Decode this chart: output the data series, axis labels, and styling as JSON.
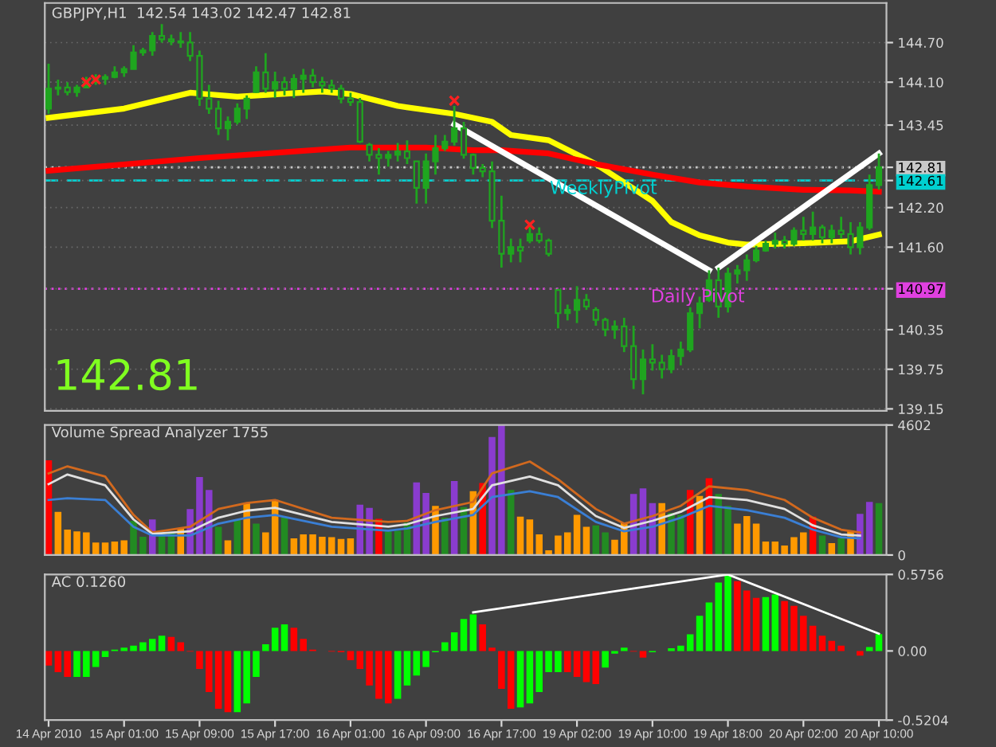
{
  "chart_data": [
    {
      "type": "candlestick",
      "title": "GBPJPY,H1  142.54 143.02 142.47 142.81",
      "color": "#1fa51f",
      "grid": "y",
      "categories": [
        null,
        null,
        null,
        null,
        null,
        null,
        null,
        null,
        null,
        null,
        null,
        null,
        null,
        null,
        null,
        null,
        null,
        null,
        null,
        null,
        null,
        null,
        null,
        null,
        null,
        null,
        null,
        null,
        null,
        null,
        null,
        null,
        null,
        null,
        null,
        null,
        null,
        null,
        null,
        null,
        null,
        null,
        null,
        null,
        null,
        null,
        null,
        null,
        null,
        null,
        null,
        null,
        null,
        null,
        null,
        null,
        null,
        null,
        null,
        null,
        null,
        null,
        null,
        null,
        null,
        null,
        null,
        null,
        null,
        null,
        null,
        null,
        null,
        null,
        null,
        null,
        null,
        null,
        null,
        null,
        null,
        null,
        null,
        null,
        null,
        null,
        null,
        null,
        null
      ],
      "ohlc": [
        [
          143.7,
          144.38,
          143.62,
          144.0
        ],
        [
          144.0,
          144.14,
          143.9,
          144.02
        ],
        [
          144.02,
          144.1,
          143.9,
          143.95
        ],
        [
          143.95,
          144.06,
          143.88,
          144.02
        ],
        [
          144.02,
          144.18,
          144.02,
          144.1
        ],
        [
          144.1,
          144.22,
          144.06,
          144.15
        ],
        [
          144.15,
          144.22,
          144.06,
          144.18
        ],
        [
          144.18,
          144.34,
          144.16,
          144.25
        ],
        [
          144.25,
          144.34,
          144.18,
          144.3
        ],
        [
          144.3,
          144.66,
          144.3,
          144.55
        ],
        [
          144.55,
          144.62,
          144.5,
          144.58
        ],
        [
          144.58,
          144.86,
          144.5,
          144.8
        ],
        [
          144.8,
          144.98,
          144.7,
          144.75
        ],
        [
          144.75,
          144.82,
          144.66,
          144.72
        ],
        [
          144.72,
          144.86,
          144.62,
          144.7
        ],
        [
          144.7,
          144.86,
          144.42,
          144.5
        ],
        [
          144.5,
          144.58,
          143.74,
          143.85
        ],
        [
          143.85,
          144.06,
          143.62,
          143.7
        ],
        [
          143.7,
          143.82,
          143.3,
          143.4
        ],
        [
          143.4,
          143.58,
          143.22,
          143.5
        ],
        [
          143.5,
          143.78,
          143.46,
          143.7
        ],
        [
          143.7,
          143.9,
          143.54,
          143.85
        ],
        [
          143.95,
          144.34,
          143.94,
          144.25
        ],
        [
          144.25,
          144.54,
          143.94,
          144.0
        ],
        [
          144.0,
          144.26,
          143.86,
          144.1
        ],
        [
          144.1,
          144.18,
          143.9,
          144.0
        ],
        [
          144.0,
          144.22,
          143.86,
          144.15
        ],
        [
          144.15,
          144.3,
          143.94,
          144.2
        ],
        [
          144.2,
          144.3,
          144.02,
          144.1
        ],
        [
          144.1,
          144.18,
          143.94,
          144.05
        ],
        [
          144.05,
          144.14,
          143.94,
          144.0
        ],
        [
          144.0,
          144.06,
          143.78,
          143.85
        ],
        [
          143.85,
          143.94,
          143.74,
          143.8
        ],
        [
          143.8,
          143.86,
          143.18,
          143.2
        ],
        [
          143.15,
          143.18,
          142.9,
          143.0
        ],
        [
          143.0,
          143.1,
          142.7,
          142.95
        ],
        [
          142.95,
          143.06,
          142.82,
          143.0
        ],
        [
          143.0,
          143.18,
          142.9,
          143.05
        ],
        [
          143.05,
          143.22,
          142.86,
          142.95
        ],
        [
          142.9,
          142.9,
          142.26,
          142.5
        ],
        [
          142.5,
          143.02,
          142.26,
          142.9
        ],
        [
          142.9,
          143.3,
          142.7,
          143.1
        ],
        [
          143.1,
          143.3,
          143.06,
          143.2
        ],
        [
          143.2,
          143.74,
          143.14,
          143.4
        ],
        [
          143.4,
          143.5,
          142.94,
          143.0
        ],
        [
          143.0,
          143.02,
          142.7,
          142.8
        ],
        [
          142.8,
          142.86,
          142.66,
          142.75
        ],
        [
          142.75,
          142.9,
          141.89,
          142.0
        ],
        [
          142.0,
          142.38,
          141.29,
          141.5
        ],
        [
          141.5,
          141.73,
          141.37,
          141.6
        ],
        [
          141.6,
          141.73,
          141.37,
          141.55
        ],
        [
          141.7,
          141.98,
          141.66,
          141.8
        ],
        [
          141.8,
          141.9,
          141.66,
          141.7
        ],
        [
          141.7,
          141.73,
          141.46,
          141.5
        ],
        [
          140.95,
          140.97,
          140.37,
          140.6
        ],
        [
          140.6,
          140.73,
          140.49,
          140.65
        ],
        [
          140.65,
          141.01,
          140.45,
          140.8
        ],
        [
          140.8,
          140.89,
          140.65,
          140.7
        ],
        [
          140.65,
          140.69,
          140.41,
          140.5
        ],
        [
          140.5,
          140.53,
          140.25,
          140.35
        ],
        [
          140.35,
          140.49,
          140.21,
          140.4
        ],
        [
          140.4,
          140.53,
          140.01,
          140.1
        ],
        [
          140.1,
          140.41,
          139.45,
          139.6
        ],
        [
          139.6,
          140.05,
          139.37,
          139.9
        ],
        [
          139.9,
          140.13,
          139.73,
          139.85
        ],
        [
          139.85,
          139.97,
          139.61,
          139.75
        ],
        [
          139.75,
          140.05,
          139.69,
          139.95
        ],
        [
          139.95,
          140.17,
          139.81,
          140.05
        ],
        [
          140.05,
          140.69,
          140.01,
          140.6
        ],
        [
          140.6,
          140.85,
          140.37,
          140.75
        ],
        [
          140.8,
          141.25,
          140.77,
          141.1
        ],
        [
          141.1,
          141.29,
          140.53,
          140.7
        ],
        [
          140.7,
          141.29,
          140.61,
          141.2
        ],
        [
          141.2,
          141.33,
          141.05,
          141.25
        ],
        [
          141.25,
          141.49,
          141.09,
          141.4
        ],
        [
          141.4,
          141.62,
          141.37,
          141.55
        ],
        [
          141.55,
          141.7,
          141.53,
          141.65
        ],
        [
          141.65,
          141.82,
          141.58,
          141.7
        ],
        [
          141.7,
          141.77,
          141.58,
          141.65
        ],
        [
          141.65,
          141.9,
          141.62,
          141.85
        ],
        [
          141.85,
          142.06,
          141.7,
          141.8
        ],
        [
          141.8,
          142.14,
          141.7,
          141.9
        ],
        [
          141.9,
          141.94,
          141.66,
          141.75
        ],
        [
          141.75,
          141.94,
          141.66,
          141.85
        ],
        [
          141.85,
          142.06,
          141.73,
          141.8
        ],
        [
          141.8,
          141.98,
          141.49,
          141.6
        ],
        [
          141.6,
          141.98,
          141.49,
          141.9
        ],
        [
          141.9,
          142.7,
          141.86,
          142.54
        ],
        [
          142.54,
          143.02,
          142.47,
          142.81
        ]
      ],
      "series": [
        {
          "type": "line",
          "color": "#ffff00",
          "values": [
            143.56,
            null,
            null,
            null,
            null,
            null,
            null,
            null,
            143.7,
            null,
            null,
            null,
            null,
            null,
            null,
            143.94,
            null,
            null,
            null,
            null,
            143.88,
            null,
            null,
            null,
            null,
            null,
            null,
            null,
            null,
            143.96,
            null,
            null,
            143.92,
            null,
            null,
            null,
            null,
            143.74,
            null,
            null,
            null,
            null,
            null,
            143.62,
            null,
            null,
            null,
            143.5,
            null,
            143.3,
            null,
            null,
            null,
            143.22,
            null,
            null,
            null,
            null,
            142.86,
            null,
            null,
            null,
            null,
            null,
            142.3,
            null,
            141.98,
            null,
            null,
            141.78,
            null,
            null,
            141.67,
            null,
            141.64,
            null,
            null,
            null,
            null,
            null,
            141.66,
            null,
            null,
            null,
            null,
            141.69,
            null,
            null,
            141.79
          ]
        },
        {
          "type": "line",
          "color": "#ff0000",
          "values": [
            142.76,
            null,
            null,
            null,
            null,
            null,
            null,
            null,
            null,
            null,
            null,
            null,
            null,
            null,
            null,
            null,
            142.95,
            null,
            null,
            null,
            null,
            null,
            null,
            null,
            143.03,
            null,
            null,
            null,
            null,
            null,
            null,
            null,
            143.11,
            null,
            null,
            null,
            null,
            null,
            null,
            null,
            143.11,
            null,
            null,
            null,
            null,
            143.07,
            null,
            null,
            143.07,
            null,
            null,
            null,
            null,
            143.02,
            null,
            null,
            null,
            null,
            142.86,
            null,
            null,
            null,
            null,
            null,
            142.7,
            null,
            null,
            null,
            null,
            142.58,
            null,
            null,
            null,
            null,
            142.52,
            null,
            null,
            null,
            null,
            null,
            142.47,
            null,
            null,
            null,
            null,
            142.46,
            null,
            null,
            142.44
          ]
        },
        {
          "type": "line",
          "color": "#ffffff",
          "values": [
            null,
            null,
            null,
            null,
            null,
            null,
            null,
            null,
            null,
            null,
            null,
            null,
            null,
            null,
            null,
            null,
            null,
            null,
            null,
            null,
            null,
            null,
            null,
            null,
            null,
            null,
            null,
            null,
            null,
            null,
            null,
            null,
            null,
            null,
            null,
            null,
            null,
            null,
            null,
            null,
            null,
            null,
            null,
            143.46,
            null,
            null,
            null,
            null,
            null,
            null,
            null,
            null,
            null,
            null,
            null,
            null,
            null,
            null,
            null,
            null,
            null,
            null,
            null,
            null,
            null,
            null,
            null,
            null,
            null,
            null,
            141.25,
            null,
            null,
            null,
            null,
            null,
            null,
            null,
            null,
            null,
            null,
            null,
            null,
            null,
            null,
            null,
            null,
            null,
            null
          ]
        },
        {
          "type": "line",
          "color": "#ffffff",
          "values": [
            null,
            null,
            null,
            null,
            null,
            null,
            null,
            null,
            null,
            null,
            null,
            null,
            null,
            null,
            null,
            null,
            null,
            null,
            null,
            null,
            null,
            null,
            null,
            null,
            null,
            null,
            null,
            null,
            null,
            null,
            null,
            null,
            null,
            null,
            null,
            null,
            null,
            null,
            null,
            null,
            null,
            null,
            null,
            null,
            null,
            null,
            null,
            null,
            null,
            null,
            null,
            null,
            null,
            null,
            null,
            null,
            null,
            null,
            null,
            null,
            null,
            null,
            null,
            null,
            null,
            null,
            null,
            null,
            null,
            null,
            null,
            141.29,
            null,
            null,
            null,
            null,
            null,
            null,
            null,
            null,
            null,
            null,
            null,
            null,
            null,
            null,
            null,
            null,
            143.02
          ]
        },
        {
          "type": "scatter",
          "marker": "cross",
          "color": "#ff2020",
          "values": [
            null,
            null,
            null,
            null,
            144.1,
            144.14,
            null,
            null,
            null,
            null,
            null,
            null,
            null,
            null,
            null,
            null,
            null,
            null,
            null,
            null,
            null,
            null,
            null,
            null,
            null,
            null,
            null,
            null,
            null,
            null,
            null,
            null,
            null,
            null,
            null,
            null,
            null,
            null,
            null,
            null,
            null,
            null,
            null,
            143.82,
            null,
            null,
            null,
            null,
            null,
            null,
            null,
            141.94,
            null,
            null,
            null,
            null,
            null,
            null,
            null,
            null,
            null,
            null,
            null,
            null,
            null,
            null,
            null,
            null,
            null,
            null,
            null,
            null,
            null,
            null,
            null,
            null,
            null,
            null,
            null,
            null,
            null,
            null,
            null,
            null,
            null,
            null,
            null,
            null,
            null
          ]
        }
      ],
      "ylim": [
        139.12,
        145.3
      ],
      "yticks": [
        {
          "value": 144.7,
          "label": "144.70"
        },
        {
          "value": 144.1,
          "label": "144.10"
        },
        143.45,
        142.81,
        142.61,
        {
          "value": 142.2,
          "label": "142.20"
        },
        {
          "value": 141.6,
          "label": "141.60"
        },
        140.97,
        140.35,
        139.75,
        139.15
      ],
      "ref_lines": [
        {
          "axis": "y",
          "value": 142.81,
          "color": "#c8c8c8",
          "line_style": "dotted"
        },
        {
          "axis": "y",
          "value": 142.61,
          "label": "WeeklyPivot",
          "color": "#00d0d0",
          "line_style": "dashed"
        },
        {
          "axis": "y",
          "value": 140.97,
          "label": "Daily Pivot",
          "color": "#e040e0",
          "line_style": "dotted"
        }
      ],
      "annotations": [
        "142.81"
      ]
    },
    {
      "type": "bar",
      "title": "Volume Spread Analyzer 1755",
      "categories": [
        null,
        null,
        null,
        null,
        null,
        null,
        null,
        null,
        null,
        null,
        null,
        null,
        null,
        null,
        null,
        null,
        null,
        null,
        null,
        null,
        null,
        null,
        null,
        null,
        null,
        null,
        null,
        null,
        null,
        null,
        null,
        null,
        null,
        null,
        null,
        null,
        null,
        null,
        null,
        null,
        null,
        null,
        null,
        null,
        null,
        null,
        null,
        null,
        null,
        null,
        null,
        null,
        null,
        null,
        null,
        null,
        null,
        null,
        null,
        null,
        null,
        null,
        null,
        null,
        null,
        null,
        null,
        null,
        null,
        null,
        null,
        null,
        null,
        null,
        null,
        null,
        null,
        null,
        null,
        null,
        null,
        null,
        null,
        null,
        null,
        null,
        null,
        null,
        null
      ],
      "values": [
        3350,
        1530,
        900,
        840,
        800,
        440,
        440,
        480,
        520,
        1210,
        650,
        1260,
        800,
        800,
        940,
        1630,
        2760,
        2300,
        1000,
        520,
        1260,
        1840,
        1110,
        800,
        1950,
        1320,
        590,
        730,
        730,
        650,
        630,
        570,
        590,
        1780,
        1670,
        1280,
        840,
        860,
        1150,
        2570,
        2200,
        1740,
        1320,
        2620,
        1700,
        2260,
        2550,
        4180,
        4602,
        2300,
        1360,
        1260,
        730,
        170,
        690,
        800,
        1420,
        1000,
        1050,
        800,
        540,
        1150,
        2160,
        2360,
        1840,
        1840,
        1490,
        1420,
        2300,
        2090,
        2720,
        2160,
        1740,
        1110,
        1380,
        1110,
        480,
        480,
        340,
        630,
        800,
        1360,
        690,
        420,
        590,
        860,
        1460,
        1880,
        1840
      ],
      "colors": [
        "#ff0000",
        "#ff9900",
        "#ff9900",
        "#ff9900",
        "#ff9900",
        "#ff9900",
        "#ff9900",
        "#ff9900",
        "#ff9900",
        "#228b22",
        "#228b22",
        "#8a3ccf",
        "#228b22",
        "#228b22",
        "#ff9900",
        "#8a3ccf",
        "#8a3ccf",
        "#8a3ccf",
        "#228b22",
        "#ff9900",
        "#228b22",
        "#ff9900",
        "#228b22",
        "#ff9900",
        "#ff9900",
        "#228b22",
        "#ff9900",
        "#ff9900",
        "#ff9900",
        "#ff9900",
        "#ff9900",
        "#ff9900",
        "#ff9900",
        "#8a3ccf",
        "#8a3ccf",
        "#ff0000",
        "#228b22",
        "#228b22",
        "#228b22",
        "#8a3ccf",
        "#8a3ccf",
        "#ff9900",
        "#228b22",
        "#8a3ccf",
        "#228b22",
        "#ff9900",
        "#ff0000",
        "#8a3ccf",
        "#8a3ccf",
        "#228b22",
        "#ff9900",
        "#ff9900",
        "#ff9900",
        "#ff9900",
        "#ff9900",
        "#ff9900",
        "#ff9900",
        "#ff9900",
        "#228b22",
        "#228b22",
        "#ff9900",
        "#ff9900",
        "#8a3ccf",
        "#8a3ccf",
        "#8a3ccf",
        "#ff9900",
        "#228b22",
        "#228b22",
        "#ff0000",
        "#ff9900",
        "#ff0000",
        "#228b22",
        "#228b22",
        "#ff9900",
        "#ff9900",
        "#ff9900",
        "#ff9900",
        "#ff9900",
        "#ff9900",
        "#ff9900",
        "#ff9900",
        "#ff0000",
        "#228b22",
        "#ff9900",
        "#228b22",
        "#ff9900",
        "#8a3ccf",
        "#8a3ccf",
        "#228b22"
      ],
      "series": [
        {
          "type": "line",
          "color": "#d2691e",
          "values": [
            2890,
            null,
            3140,
            null,
            null,
            null,
            2780,
            null,
            null,
            1420,
            null,
            800,
            null,
            null,
            null,
            1000,
            null,
            null,
            1630,
            null,
            null,
            1840,
            null,
            null,
            1950,
            null,
            null,
            null,
            null,
            null,
            1320,
            null,
            null,
            null,
            null,
            null,
            1170,
            null,
            1210,
            null,
            null,
            1590,
            null,
            null,
            null,
            1880,
            null,
            2890,
            null,
            null,
            null,
            3310,
            null,
            null,
            2680,
            null,
            null,
            null,
            1630,
            null,
            null,
            1110,
            null,
            null,
            1380,
            null,
            null,
            1740,
            null,
            null,
            2430,
            null,
            null,
            null,
            2300,
            null,
            null,
            null,
            1950,
            null,
            null,
            1320,
            null,
            null,
            900,
            null,
            800,
            null,
            null
          ]
        },
        {
          "type": "line",
          "color": "#e0e0e0",
          "values": [
            2510,
            null,
            2850,
            null,
            null,
            null,
            2470,
            null,
            null,
            1260,
            null,
            750,
            null,
            null,
            null,
            840,
            null,
            null,
            1320,
            null,
            null,
            1570,
            null,
            null,
            1670,
            null,
            null,
            null,
            null,
            null,
            1170,
            null,
            null,
            null,
            null,
            null,
            1000,
            null,
            1090,
            null,
            null,
            1380,
            null,
            null,
            null,
            1630,
            null,
            2470,
            null,
            null,
            null,
            2780,
            null,
            null,
            2470,
            null,
            null,
            null,
            1380,
            null,
            null,
            960,
            null,
            null,
            1210,
            null,
            null,
            1530,
            null,
            null,
            2050,
            null,
            null,
            null,
            1950,
            null,
            null,
            null,
            1630,
            null,
            null,
            1050,
            null,
            null,
            730,
            null,
            690,
            null,
            null
          ]
        },
        {
          "type": "line",
          "color": "#3a7fd5",
          "values": [
            1950,
            null,
            2010,
            null,
            null,
            null,
            1950,
            null,
            null,
            1000,
            null,
            690,
            null,
            null,
            null,
            690,
            null,
            null,
            1110,
            null,
            null,
            1320,
            null,
            null,
            1420,
            null,
            null,
            null,
            null,
            null,
            1000,
            null,
            null,
            null,
            null,
            null,
            860,
            null,
            940,
            null,
            null,
            1170,
            null,
            null,
            null,
            1420,
            null,
            2050,
            null,
            null,
            null,
            2260,
            null,
            null,
            2050,
            null,
            null,
            null,
            1170,
            null,
            null,
            840,
            null,
            null,
            1000,
            null,
            null,
            1320,
            null,
            null,
            1740,
            null,
            null,
            null,
            1590,
            null,
            null,
            null,
            1320,
            null,
            null,
            900,
            null,
            null,
            630,
            null,
            590,
            null,
            null
          ]
        }
      ],
      "ylim": [
        0,
        4602
      ],
      "yticks": [
        0,
        4602
      ]
    },
    {
      "type": "bar",
      "title": "AC 0.1260",
      "categories": [
        "14 Apr 2010",
        null,
        null,
        null,
        null,
        null,
        null,
        null,
        "15 Apr 01:00",
        null,
        null,
        null,
        null,
        null,
        null,
        null,
        "15 Apr 09:00",
        null,
        null,
        null,
        null,
        null,
        null,
        null,
        "15 Apr 17:00",
        null,
        null,
        null,
        null,
        null,
        null,
        null,
        "16 Apr 01:00",
        null,
        null,
        null,
        null,
        null,
        null,
        null,
        "16 Apr 09:00",
        null,
        null,
        null,
        null,
        null,
        null,
        null,
        "16 Apr 17:00",
        null,
        null,
        null,
        null,
        null,
        null,
        null,
        "19 Apr 02:00",
        null,
        null,
        null,
        null,
        null,
        null,
        null,
        "19 Apr 10:00",
        null,
        null,
        null,
        null,
        null,
        null,
        null,
        "19 Apr 18:00",
        null,
        null,
        null,
        null,
        null,
        null,
        null,
        "20 Apr 02:00",
        null,
        null,
        null,
        null,
        null,
        null,
        null,
        "20 Apr 10:00"
      ],
      "values": [
        -0.11,
        -0.16,
        -0.195,
        -0.195,
        -0.195,
        -0.12,
        -0.045,
        0.01,
        0.025,
        0.04,
        0.065,
        0.09,
        0.115,
        0.105,
        0.065,
        -0.005,
        -0.135,
        -0.31,
        -0.435,
        -0.46,
        -0.46,
        -0.395,
        -0.195,
        0.05,
        0.175,
        0.2,
        0.175,
        0.09,
        0.01,
        null,
        -0.005,
        -0.01,
        -0.07,
        -0.135,
        -0.26,
        -0.36,
        -0.395,
        -0.36,
        -0.26,
        -0.185,
        -0.12,
        -0.01,
        0.065,
        0.14,
        0.24,
        0.275,
        0.2,
        0.025,
        -0.285,
        -0.435,
        -0.425,
        -0.395,
        -0.31,
        -0.16,
        -0.16,
        -0.16,
        -0.195,
        -0.235,
        -0.25,
        -0.125,
        -0.02,
        0.025,
        -0.005,
        -0.05,
        -0.01,
        null,
        0.02,
        0.04,
        0.125,
        0.265,
        0.365,
        0.515,
        0.565,
        0.525,
        0.455,
        0.4,
        0.405,
        0.425,
        0.375,
        0.34,
        0.265,
        0.19,
        0.115,
        0.075,
        0.04,
        null,
        -0.035,
        0.03,
        0.126
      ],
      "colors": [
        "#ff0000",
        "#ff0000",
        "#ff0000",
        "#00ff00",
        "#00ff00",
        "#00ff00",
        "#00ff00",
        "#00ff00",
        "#00ff00",
        "#00ff00",
        "#00ff00",
        "#00ff00",
        "#00ff00",
        "#ff0000",
        "#ff0000",
        "#ff0000",
        "#ff0000",
        "#ff0000",
        "#ff0000",
        "#ff0000",
        "#00ff00",
        "#00ff00",
        "#00ff00",
        "#00ff00",
        "#00ff00",
        "#00ff00",
        "#ff0000",
        "#ff0000",
        "#ff0000",
        "#ff0000",
        "#ff0000",
        "#ff0000",
        "#ff0000",
        "#ff0000",
        "#ff0000",
        "#ff0000",
        "#ff0000",
        "#00ff00",
        "#00ff00",
        "#00ff00",
        "#00ff00",
        "#00ff00",
        "#00ff00",
        "#00ff00",
        "#00ff00",
        "#00ff00",
        "#ff0000",
        "#ff0000",
        "#ff0000",
        "#ff0000",
        "#00ff00",
        "#00ff00",
        "#00ff00",
        "#00ff00",
        "#00ff00",
        "#ff0000",
        "#ff0000",
        "#ff0000",
        "#ff0000",
        "#00ff00",
        "#00ff00",
        "#00ff00",
        "#ff0000",
        "#ff0000",
        "#00ff00",
        "#00ff00",
        "#00ff00",
        "#00ff00",
        "#00ff00",
        "#00ff00",
        "#00ff00",
        "#00ff00",
        "#00ff00",
        "#ff0000",
        "#ff0000",
        "#ff0000",
        "#00ff00",
        "#00ff00",
        "#ff0000",
        "#ff0000",
        "#ff0000",
        "#ff0000",
        "#ff0000",
        "#ff0000",
        "#ff0000",
        "#ff0000",
        "#ff0000",
        "#00ff00",
        "#00ff00"
      ],
      "series": [
        {
          "type": "line",
          "color": "#ffffff",
          "values": [
            null,
            null,
            null,
            null,
            null,
            null,
            null,
            null,
            null,
            null,
            null,
            null,
            null,
            null,
            null,
            null,
            null,
            null,
            null,
            null,
            null,
            null,
            null,
            null,
            null,
            null,
            null,
            null,
            null,
            null,
            null,
            null,
            null,
            null,
            null,
            null,
            null,
            null,
            null,
            null,
            null,
            null,
            null,
            null,
            null,
            0.29,
            null,
            null,
            null,
            null,
            null,
            null,
            null,
            null,
            null,
            null,
            null,
            null,
            null,
            null,
            null,
            null,
            null,
            null,
            null,
            null,
            null,
            null,
            null,
            null,
            null,
            null,
            0.575,
            null,
            null,
            null,
            null,
            null,
            null,
            null,
            null,
            null,
            null,
            null,
            null,
            null,
            null,
            null,
            0.13
          ]
        }
      ],
      "ylim": [
        -0.5204,
        0.5756
      ],
      "yticks": [
        -0.5204,
        {
          "value": 0,
          "label": "0.00"
        },
        0.5756
      ]
    }
  ]
}
